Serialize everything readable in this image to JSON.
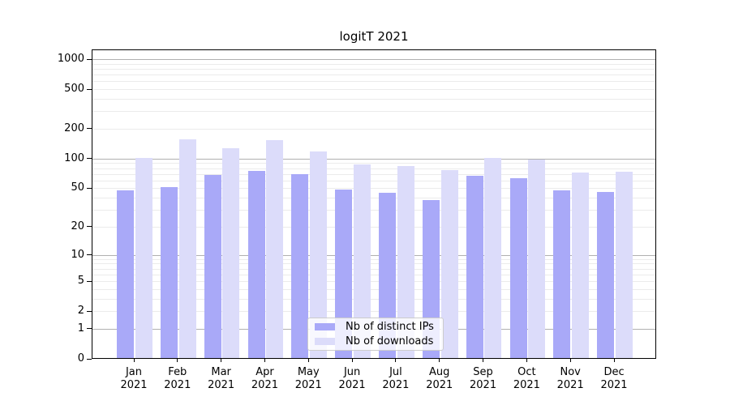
{
  "chart_data": {
    "type": "bar",
    "title": "logitT 2021",
    "xlabel": "",
    "ylabel": "",
    "yscale": "log1p",
    "ylim": [
      0,
      1250
    ],
    "grid": true,
    "legend_position": "lower center",
    "categories": [
      "Jan 2021",
      "Feb 2021",
      "Mar 2021",
      "Apr 2021",
      "May 2021",
      "Jun 2021",
      "Jul 2021",
      "Aug 2021",
      "Sep 2021",
      "Oct 2021",
      "Nov 2021",
      "Dec 2021"
    ],
    "yticks": [
      0,
      1,
      2,
      5,
      10,
      20,
      50,
      100,
      200,
      500,
      1000
    ],
    "series": [
      {
        "name": "Nb of distinct IPs",
        "color": "#a9a9f8",
        "values": [
          47,
          50,
          67,
          74,
          69,
          48,
          44,
          37,
          66,
          62,
          47,
          45
        ]
      },
      {
        "name": "Nb of downloads",
        "color": "#dcdcfa",
        "values": [
          100,
          153,
          124,
          151,
          117,
          86,
          83,
          75,
          99,
          97,
          71,
          72
        ]
      }
    ],
    "colors": {
      "major_grid": "#b0b0b0",
      "minor_grid": "#ebebeb",
      "axis": "#000000",
      "legend_border": "#cccccc"
    }
  }
}
